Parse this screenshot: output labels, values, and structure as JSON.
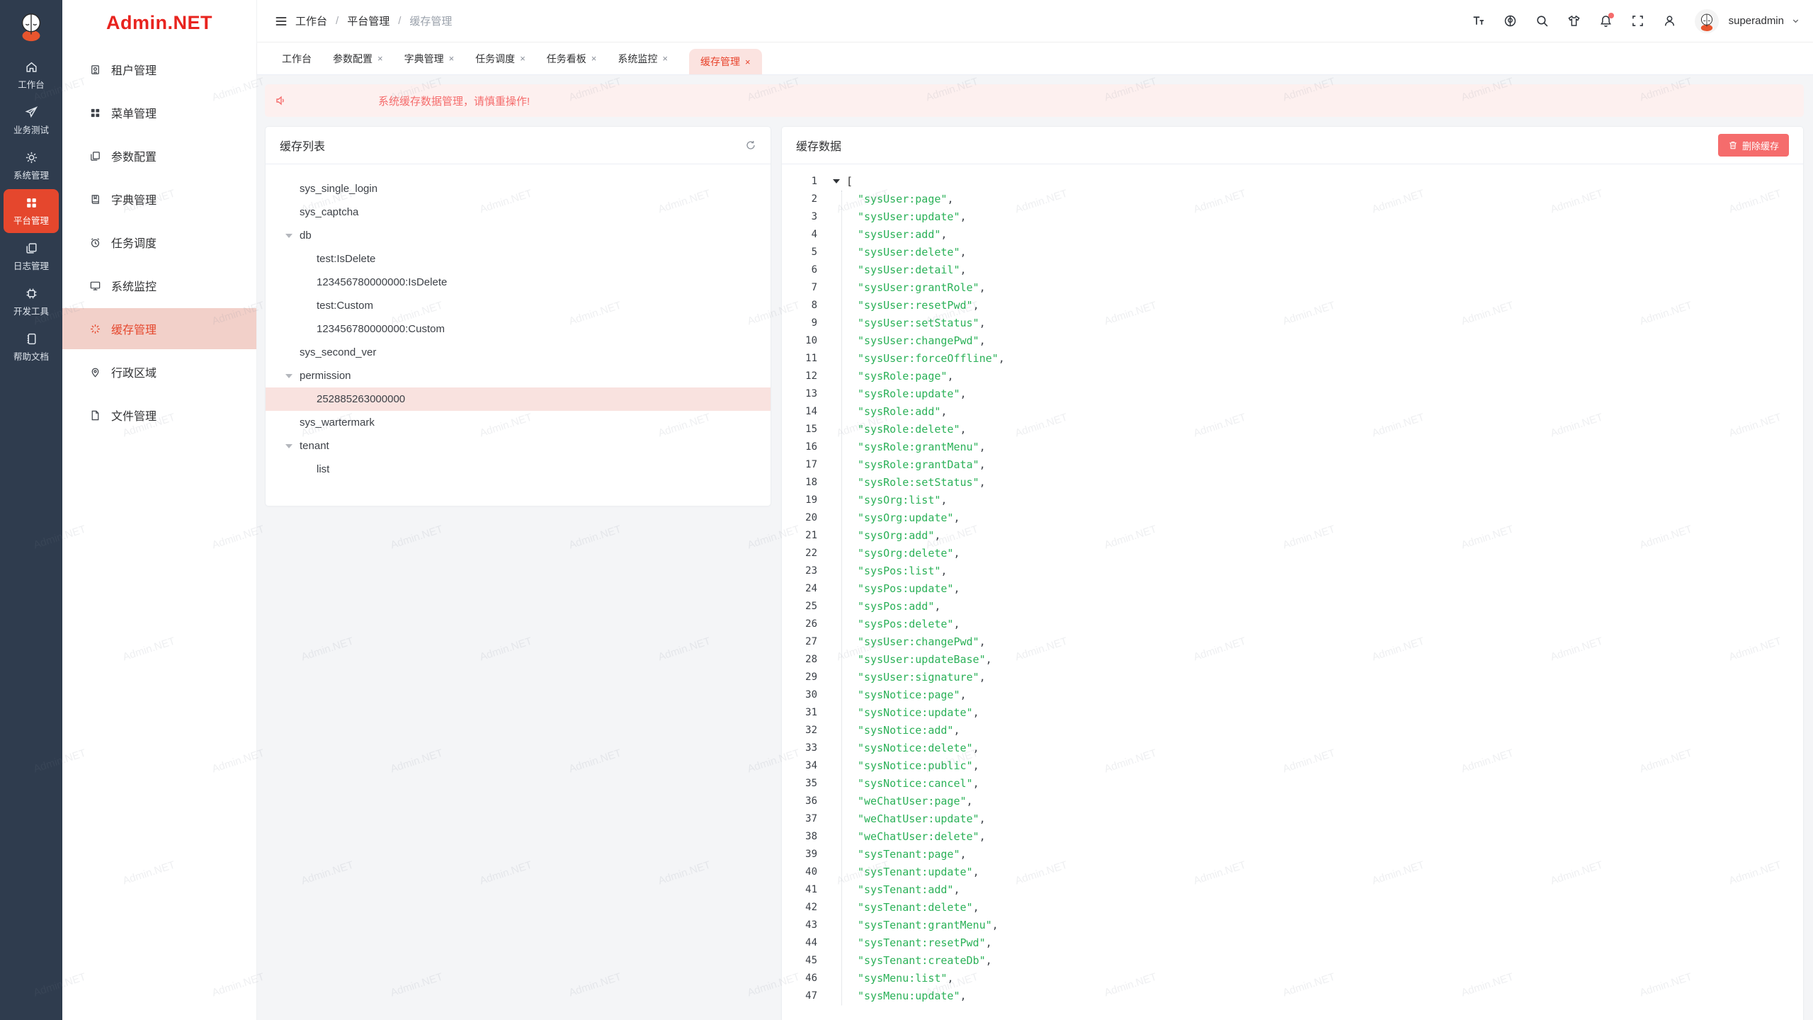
{
  "watermark": "Admin.NET",
  "rail": {
    "items": [
      {
        "label": "工作台"
      },
      {
        "label": "业务测试"
      },
      {
        "label": "系统管理"
      },
      {
        "label": "平台管理",
        "active": true
      },
      {
        "label": "日志管理"
      },
      {
        "label": "开发工具"
      },
      {
        "label": "帮助文档"
      }
    ]
  },
  "sidebar": {
    "logo": "Admin.NET",
    "items": [
      {
        "label": "租户管理"
      },
      {
        "label": "菜单管理"
      },
      {
        "label": "参数配置"
      },
      {
        "label": "字典管理"
      },
      {
        "label": "任务调度"
      },
      {
        "label": "系统监控"
      },
      {
        "label": "缓存管理",
        "active": true
      },
      {
        "label": "行政区域"
      },
      {
        "label": "文件管理"
      }
    ]
  },
  "header": {
    "breadcrumb": [
      "工作台",
      "平台管理",
      "缓存管理"
    ],
    "separator": "/",
    "username": "superadmin"
  },
  "tabs": {
    "close_glyph": "×",
    "items": [
      {
        "label": "工作台",
        "closable": false
      },
      {
        "label": "参数配置",
        "closable": true
      },
      {
        "label": "字典管理",
        "closable": true
      },
      {
        "label": "任务调度",
        "closable": true
      },
      {
        "label": "任务看板",
        "closable": true
      },
      {
        "label": "系统监控",
        "closable": true
      },
      {
        "label": "缓存管理",
        "closable": true,
        "active": true
      }
    ]
  },
  "alert": {
    "text": "系统缓存数据管理，请慎重操作!"
  },
  "cache_list": {
    "title": "缓存列表",
    "tree": [
      {
        "label": "sys_single_login",
        "level": 0
      },
      {
        "label": "sys_captcha",
        "level": 0
      },
      {
        "label": "db",
        "level": 0,
        "caret": true
      },
      {
        "label": "test:IsDelete",
        "level": 1
      },
      {
        "label": "123456780000000:IsDelete",
        "level": 1
      },
      {
        "label": "test:Custom",
        "level": 1
      },
      {
        "label": "123456780000000:Custom",
        "level": 1
      },
      {
        "label": "sys_second_ver",
        "level": 0
      },
      {
        "label": "permission",
        "level": 0,
        "caret": true
      },
      {
        "label": "252885263000000",
        "level": 1,
        "selected": true
      },
      {
        "label": "sys_wartermark",
        "level": 0
      },
      {
        "label": "tenant",
        "level": 0,
        "caret": true
      },
      {
        "label": "list",
        "level": 1
      }
    ]
  },
  "cache_data": {
    "title": "缓存数据",
    "delete_button": "删除缓存",
    "open_bracket": "[",
    "quote": "\"",
    "comma": ",",
    "entries": [
      "sysUser:page",
      "sysUser:update",
      "sysUser:add",
      "sysUser:delete",
      "sysUser:detail",
      "sysUser:grantRole",
      "sysUser:resetPwd",
      "sysUser:setStatus",
      "sysUser:changePwd",
      "sysUser:forceOffline",
      "sysRole:page",
      "sysRole:update",
      "sysRole:add",
      "sysRole:delete",
      "sysRole:grantMenu",
      "sysRole:grantData",
      "sysRole:setStatus",
      "sysOrg:list",
      "sysOrg:update",
      "sysOrg:add",
      "sysOrg:delete",
      "sysPos:list",
      "sysPos:update",
      "sysPos:add",
      "sysPos:delete",
      "sysUser:changePwd",
      "sysUser:updateBase",
      "sysUser:signature",
      "sysNotice:page",
      "sysNotice:update",
      "sysNotice:add",
      "sysNotice:delete",
      "sysNotice:public",
      "sysNotice:cancel",
      "weChatUser:page",
      "weChatUser:update",
      "weChatUser:delete",
      "sysTenant:page",
      "sysTenant:update",
      "sysTenant:add",
      "sysTenant:delete",
      "sysTenant:grantMenu",
      "sysTenant:resetPwd",
      "sysTenant:createDb",
      "sysMenu:list",
      "sysMenu:update"
    ]
  }
}
